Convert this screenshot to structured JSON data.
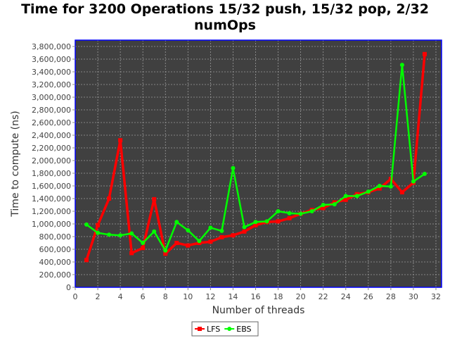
{
  "chart_data": {
    "type": "line",
    "title": "Time for 3200 Operations 15/32 push, 15/32 pop, 2/32\nnumOps",
    "xlabel": "Number of threads",
    "ylabel": "Time to compute (ns)",
    "xlim": [
      0,
      32.5
    ],
    "ylim": [
      0,
      3900000
    ],
    "xticks": [
      0,
      2,
      4,
      6,
      8,
      10,
      12,
      14,
      16,
      18,
      20,
      22,
      24,
      26,
      28,
      30,
      32
    ],
    "yticks": [
      0,
      200000,
      400000,
      600000,
      800000,
      1000000,
      1200000,
      1400000,
      1600000,
      1800000,
      2000000,
      2200000,
      2400000,
      2600000,
      2800000,
      3000000,
      3200000,
      3400000,
      3600000,
      3800000
    ],
    "ytick_labels": [
      "0",
      "200,000",
      "400,000",
      "600,000",
      "800,000",
      "1,000,000",
      "1,200,000",
      "1,400,000",
      "1,600,000",
      "1,800,000",
      "2,000,000",
      "2,200,000",
      "2,400,000",
      "2,600,000",
      "2,800,000",
      "3,000,000",
      "3,200,000",
      "3,400,000",
      "3,600,000",
      "3,800,000"
    ],
    "grid": true,
    "legend_position": "bottom",
    "background_color": "#404040",
    "frame_color": "#0000ff",
    "x": [
      1,
      2,
      3,
      4,
      5,
      6,
      7,
      8,
      9,
      10,
      11,
      12,
      13,
      14,
      15,
      16,
      17,
      18,
      19,
      20,
      21,
      22,
      23,
      24,
      25,
      26,
      27,
      28,
      29,
      30,
      31
    ],
    "series": [
      {
        "name": "LFS",
        "color": "#ff0000",
        "marker": "square",
        "values": [
          430000,
          980000,
          1400000,
          2320000,
          540000,
          620000,
          1390000,
          530000,
          700000,
          660000,
          700000,
          720000,
          790000,
          820000,
          880000,
          980000,
          1030000,
          1040000,
          1090000,
          1160000,
          1220000,
          1250000,
          1340000,
          1380000,
          1470000,
          1500000,
          1560000,
          1710000,
          1500000,
          1650000,
          3680000
        ]
      },
      {
        "name": "EBS",
        "color": "#00ff00",
        "marker": "circle",
        "values": [
          990000,
          860000,
          830000,
          820000,
          850000,
          700000,
          880000,
          580000,
          1030000,
          900000,
          730000,
          940000,
          890000,
          1880000,
          950000,
          1030000,
          1040000,
          1200000,
          1170000,
          1160000,
          1200000,
          1300000,
          1310000,
          1440000,
          1440000,
          1510000,
          1600000,
          1590000,
          3510000,
          1670000,
          1790000
        ]
      }
    ]
  }
}
